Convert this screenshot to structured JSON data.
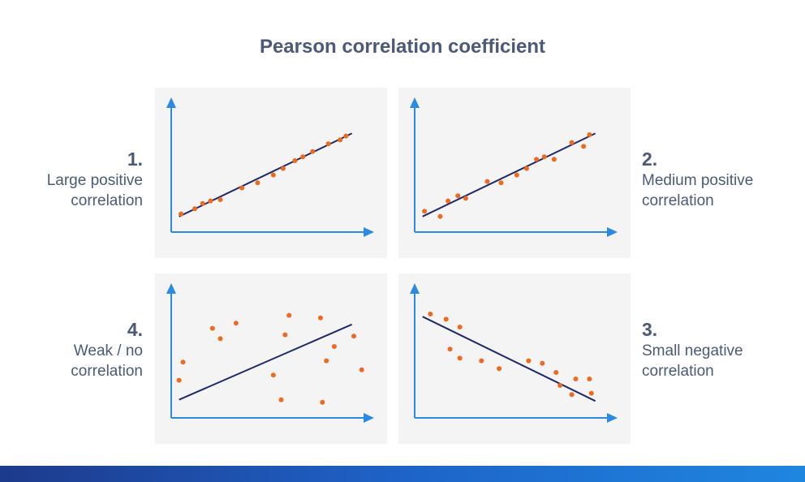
{
  "title": "Pearson correlation coefficient",
  "colors": {
    "axis": "#2a8ae4",
    "point": "#f06a1e",
    "trend_line": "#1e2a6e",
    "panel_bg": "#f5f4f4",
    "text": "#4a5a78"
  },
  "labels": [
    {
      "num": "1.",
      "line1": "Large positive",
      "line2": "correlation"
    },
    {
      "num": "2.",
      "line1": "Medium positive",
      "line2": "correlation"
    },
    {
      "num": "3.",
      "line1": "Small negative",
      "line2": "correlation"
    },
    {
      "num": "4.",
      "line1": "Weak / no",
      "line2": "correlation"
    }
  ],
  "chart_data": [
    {
      "type": "scatter",
      "title": "Large positive correlation",
      "xlim": [
        0,
        100
      ],
      "ylim": [
        0,
        100
      ],
      "x": [
        5,
        12,
        16,
        20,
        25,
        36,
        44,
        52,
        57,
        63,
        67,
        72,
        80,
        86,
        89
      ],
      "y": [
        14,
        18,
        22,
        24,
        25,
        34,
        38,
        44,
        49,
        55,
        58,
        62,
        68,
        71,
        74
      ],
      "trend_line": {
        "x": [
          4,
          92
        ],
        "y": [
          12,
          76
        ]
      }
    },
    {
      "type": "scatter",
      "title": "Medium positive correlation",
      "xlim": [
        0,
        100
      ],
      "ylim": [
        0,
        100
      ],
      "x": [
        5,
        13,
        17,
        22,
        26,
        37,
        44,
        52,
        57,
        62,
        66,
        71,
        80,
        86,
        89
      ],
      "y": [
        16,
        12,
        24,
        28,
        26,
        39,
        38,
        44,
        49,
        56,
        58,
        56,
        69,
        66,
        75
      ],
      "trend_line": {
        "x": [
          4,
          92
        ],
        "y": [
          12,
          76
        ]
      }
    },
    {
      "type": "scatter",
      "title": "Small negative correlation",
      "xlim": [
        0,
        100
      ],
      "ylim": [
        0,
        100
      ],
      "x": [
        8,
        16,
        23,
        18,
        23,
        34,
        43,
        58,
        65,
        72,
        82,
        74,
        90,
        80,
        89
      ],
      "y": [
        80,
        76,
        70,
        53,
        46,
        44,
        38,
        44,
        42,
        35,
        30,
        25,
        19,
        18,
        30
      ],
      "trend_line": {
        "x": [
          4,
          92
        ],
        "y": [
          78,
          13
        ]
      }
    },
    {
      "type": "scatter",
      "title": "Weak / no correlation",
      "xlim": [
        0,
        100
      ],
      "ylim": [
        0,
        100
      ],
      "x": [
        6,
        4,
        21,
        25,
        33,
        52,
        60,
        58,
        76,
        77,
        83,
        93,
        97,
        56,
        79
      ],
      "y": [
        43,
        29,
        69,
        61,
        73,
        33,
        79,
        64,
        77,
        12,
        55,
        63,
        37,
        14,
        44
      ],
      "trend_line": {
        "x": [
          4,
          92
        ],
        "y": [
          14,
          72
        ]
      }
    }
  ]
}
